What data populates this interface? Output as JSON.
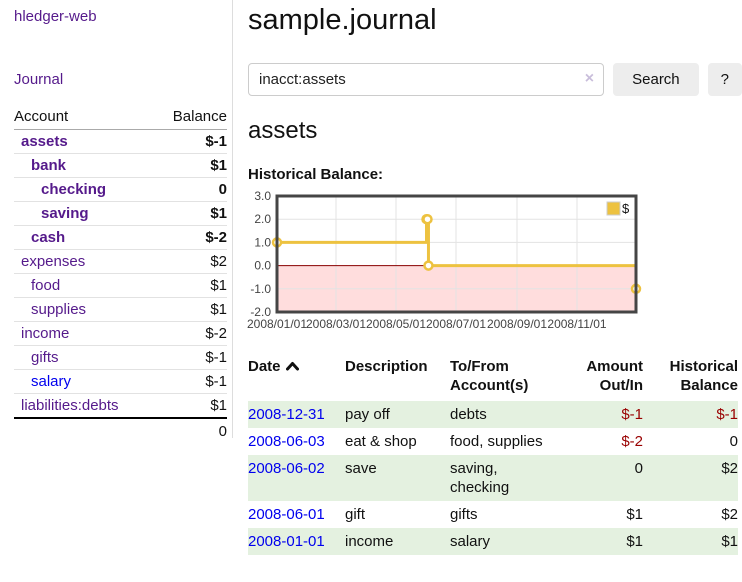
{
  "colors": {
    "link_purple": "#551a8b",
    "link_blue": "#0000ee",
    "negative_strong": "#990000",
    "negative_muted": "#c46868",
    "row_stripe_green": "#e4f1e0",
    "button_bg": "#ededed"
  },
  "sidebar": {
    "app_title": "hledger-web",
    "journal_link": "Journal",
    "accounts_table": {
      "headers": {
        "account": "Account",
        "balance": "Balance"
      },
      "rows": [
        {
          "name": "assets",
          "level": 1,
          "bold": true,
          "balance": "$-1"
        },
        {
          "name": "bank",
          "level": 2,
          "bold": true,
          "balance": "$1"
        },
        {
          "name": "checking",
          "level": 3,
          "bold": true,
          "balance": "0"
        },
        {
          "name": "saving",
          "level": 3,
          "bold": true,
          "balance": "$1"
        },
        {
          "name": "cash",
          "level": 2,
          "bold": true,
          "balance": "$-2"
        },
        {
          "name": "expenses",
          "level": 1,
          "bold": false,
          "balance": "$2"
        },
        {
          "name": "food",
          "level": 2,
          "bold": false,
          "balance": "$1"
        },
        {
          "name": "supplies",
          "level": 2,
          "bold": false,
          "balance": "$1"
        },
        {
          "name": "income",
          "level": 1,
          "bold": false,
          "balance": "$-2"
        },
        {
          "name": "gifts",
          "level": 2,
          "bold": false,
          "balance": "$-1"
        },
        {
          "name": "salary",
          "level": 2,
          "bold": false,
          "balance": "$-1",
          "link_color": "blue"
        },
        {
          "name": "liabilities:debts",
          "level": 1,
          "bold": false,
          "balance": "$1"
        }
      ],
      "total": "0"
    }
  },
  "main": {
    "title": "sample.journal",
    "search": {
      "value": "inacct:assets",
      "clear_icon": "×",
      "search_button": "Search",
      "help_button": "?"
    },
    "account_heading": "assets",
    "chart_label": "Historical Balance:",
    "register_table": {
      "headers": {
        "date": "Date",
        "sort": "ascending",
        "description": "Description",
        "to_from": [
          "To/From",
          "Account(s)"
        ],
        "amount": [
          "Amount",
          "Out/In"
        ],
        "balance": [
          "Historical",
          "Balance"
        ]
      },
      "rows": [
        {
          "date": "2008-12-31",
          "description": "pay off",
          "to_from": [
            "debts"
          ],
          "amount": "$-1",
          "balance": "$-1"
        },
        {
          "date": "2008-06-03",
          "description": "eat & shop",
          "to_from": [
            "food, supplies"
          ],
          "amount": "$-2",
          "balance": "0"
        },
        {
          "date": "2008-06-02",
          "description": "save",
          "to_from": [
            "saving,",
            "checking"
          ],
          "amount": "0",
          "balance": "$2"
        },
        {
          "date": "2008-06-01",
          "description": "gift",
          "to_from": [
            "gifts"
          ],
          "amount": "$1",
          "balance": "$2"
        },
        {
          "date": "2008-01-01",
          "description": "income",
          "to_from": [
            "salary"
          ],
          "amount": "$1",
          "balance": "$1"
        }
      ]
    }
  },
  "chart_data": {
    "type": "line",
    "title": "Historical Balance",
    "step": true,
    "series": [
      {
        "name": "$",
        "points": [
          {
            "date": "2008-01-01",
            "value": 1
          },
          {
            "date": "2008-06-01",
            "value": 2
          },
          {
            "date": "2008-06-02",
            "value": 2
          },
          {
            "date": "2008-06-03",
            "value": 0
          },
          {
            "date": "2008-12-31",
            "value": -1
          }
        ]
      }
    ],
    "ylim": [
      -2.0,
      3.0
    ],
    "yticks": [
      3.0,
      2.0,
      1.0,
      0.0,
      -1.0,
      -2.0
    ],
    "xlim": [
      "2008-01-01",
      "2008-12-31"
    ],
    "xticks": [
      {
        "date": "2008-01-01",
        "label": "2008/01/01"
      },
      {
        "date": "2008-03-01",
        "label": "2008/03/01"
      },
      {
        "date": "2008-05-01",
        "label": "2008/05/01"
      },
      {
        "date": "2008-07-01",
        "label": "2008/07/01"
      },
      {
        "date": "2008-09-01",
        "label": "2008/09/01"
      },
      {
        "date": "2008-11-01",
        "label": "2008/11/01"
      }
    ],
    "legend": {
      "label": "$",
      "position": "top-right"
    },
    "grid": true,
    "colors": {
      "line": "#edc240",
      "marker_fill": "#ffffff",
      "negative_region": "#ffdddd",
      "zero_line": "#8b0000",
      "border": "#454545",
      "grid": "#e3e3e3",
      "tick_text": "#444444"
    }
  }
}
